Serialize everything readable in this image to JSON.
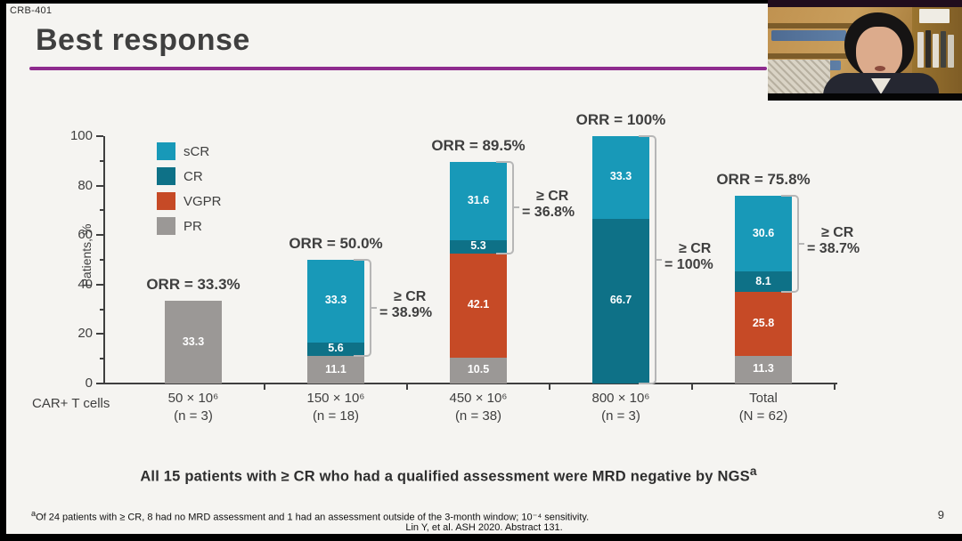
{
  "slide": {
    "study_tag": "CRB-401",
    "title": "Best response",
    "statement_text": "All 15 patients with ≥ CR who had a qualified assessment were MRD negative by NGS",
    "statement_sup": "a",
    "footnote_sup": "a",
    "footnote_text": "Of 24 patients with ≥ CR, 8 had no MRD assessment and 1 had an assessment outside of the 3-month window; 10⁻⁴ sensitivity.",
    "citation": "Lin Y, et al. ASH 2020. Abstract 131.",
    "page_number": "9",
    "accent_color": "#8e2b8e"
  },
  "chart_data": {
    "type": "bar",
    "stacked": true,
    "ylabel": "Patients, %",
    "ylim": [
      0,
      100
    ],
    "yticks": [
      0,
      20,
      40,
      60,
      80,
      100
    ],
    "yticks_minor": [
      10,
      30,
      50,
      70,
      90
    ],
    "grid": false,
    "legend_position": "upper-left-inside",
    "xlabel_prefix": "CAR+ T cells",
    "categories": [
      "50 × 10⁶",
      "150 × 10⁶",
      "450 × 10⁶",
      "800 × 10⁶",
      "Total"
    ],
    "category_counts": [
      "(n = 3)",
      "(n = 18)",
      "(n = 38)",
      "(n = 3)",
      "(N = 62)"
    ],
    "stack_order": [
      "PR",
      "VGPR",
      "CR",
      "sCR"
    ],
    "series": [
      {
        "name": "sCR",
        "color": "#1899b8",
        "values": [
          null,
          33.3,
          31.6,
          33.3,
          30.6
        ]
      },
      {
        "name": "CR",
        "color": "#0e7187",
        "values": [
          null,
          5.6,
          5.3,
          66.7,
          8.1
        ]
      },
      {
        "name": "VGPR",
        "color": "#c64a26",
        "values": [
          null,
          null,
          42.1,
          null,
          25.8
        ]
      },
      {
        "name": "PR",
        "color": "#9b9896",
        "values": [
          33.3,
          11.1,
          10.5,
          null,
          11.3
        ]
      }
    ],
    "orr_labels": [
      "ORR = 33.3%",
      "ORR = 50.0%",
      "ORR = 89.5%",
      "ORR = 100%",
      "ORR = 75.8%"
    ],
    "ge_cr_annotations": [
      null,
      {
        "line1": "≥ CR",
        "line2": "= 38.9%"
      },
      {
        "line1": "≥ CR",
        "line2": "= 36.8%"
      },
      {
        "line1": "≥ CR",
        "line2": "= 100%"
      },
      {
        "line1": "≥ CR",
        "line2": "= 38.7%"
      }
    ]
  },
  "webcam": {
    "description": "presenter video"
  }
}
